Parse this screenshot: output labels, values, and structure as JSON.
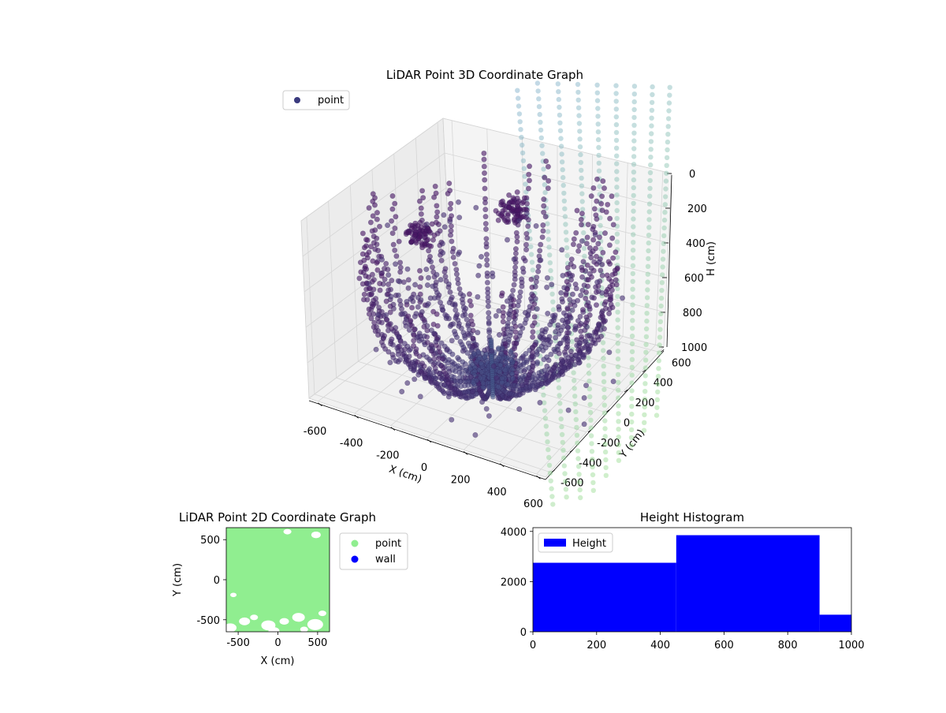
{
  "chart_data": [
    {
      "type": "scatter3d",
      "title": "LiDAR Point 3D Coordinate Graph",
      "xlabel": "X (cm)",
      "ylabel": "Y (cm)",
      "zlabel": "H (cm)",
      "xlim": [
        -650,
        650
      ],
      "ylim": [
        -650,
        650
      ],
      "zlim": [
        0,
        1000
      ],
      "z_inverted": true,
      "x_ticks": [
        -600,
        -400,
        -200,
        0,
        200,
        400,
        600
      ],
      "y_ticks": [
        -600,
        -400,
        -200,
        0,
        200,
        400,
        600
      ],
      "z_ticks": [
        0,
        200,
        400,
        600,
        800,
        1000
      ],
      "legend": {
        "position": "top-left",
        "entries": [
          "point"
        ]
      },
      "series": [
        {
          "name": "point",
          "color": "#3b3b7e",
          "structure": "radial arcs of points from the floor centre (0,0,1000) up to ring radius ~650 at height ~0-300; vertical post at x=0,y=0; clusters near (-350,-50,250) and (-50,300,200); out-of-bounds columns at x=650",
          "arcs": 32,
          "arc_radius": 650,
          "clusters": [
            {
              "x": -350,
              "y": -50,
              "z": 250
            },
            {
              "x": -50,
              "y": 300,
              "z": 200
            }
          ]
        }
      ]
    },
    {
      "type": "scatter",
      "title": "LiDAR Point 2D Coordinate Graph",
      "xlabel": "X (cm)",
      "ylabel": "Y (cm)",
      "xlim": [
        -650,
        650
      ],
      "ylim": [
        -650,
        650
      ],
      "x_ticks": [
        -500,
        0,
        500
      ],
      "y_ticks": [
        -500,
        0,
        500
      ],
      "legend": {
        "position": "outside-right",
        "entries": [
          "point",
          "wall"
        ]
      },
      "series": [
        {
          "name": "point",
          "color": "#90ee90",
          "coverage": "dense fill of square"
        },
        {
          "name": "wall",
          "color": "#0000ff",
          "coverage": "none visible"
        }
      ]
    },
    {
      "type": "bar",
      "title": "Height Histogram",
      "xlim": [
        0,
        1000
      ],
      "ylim": [
        0,
        4150
      ],
      "x_ticks": [
        0,
        200,
        400,
        600,
        800,
        1000
      ],
      "y_ticks": [
        0,
        2000,
        4000
      ],
      "legend": {
        "position": "top-left",
        "entries": [
          "Height"
        ]
      },
      "series": [
        {
          "name": "Height",
          "color": "#0000ff",
          "bins": [
            {
              "from": 0,
              "to": 450,
              "count": 2750
            },
            {
              "from": 450,
              "to": 900,
              "count": 3850
            },
            {
              "from": 900,
              "to": 1000,
              "count": 680
            }
          ]
        }
      ]
    }
  ]
}
